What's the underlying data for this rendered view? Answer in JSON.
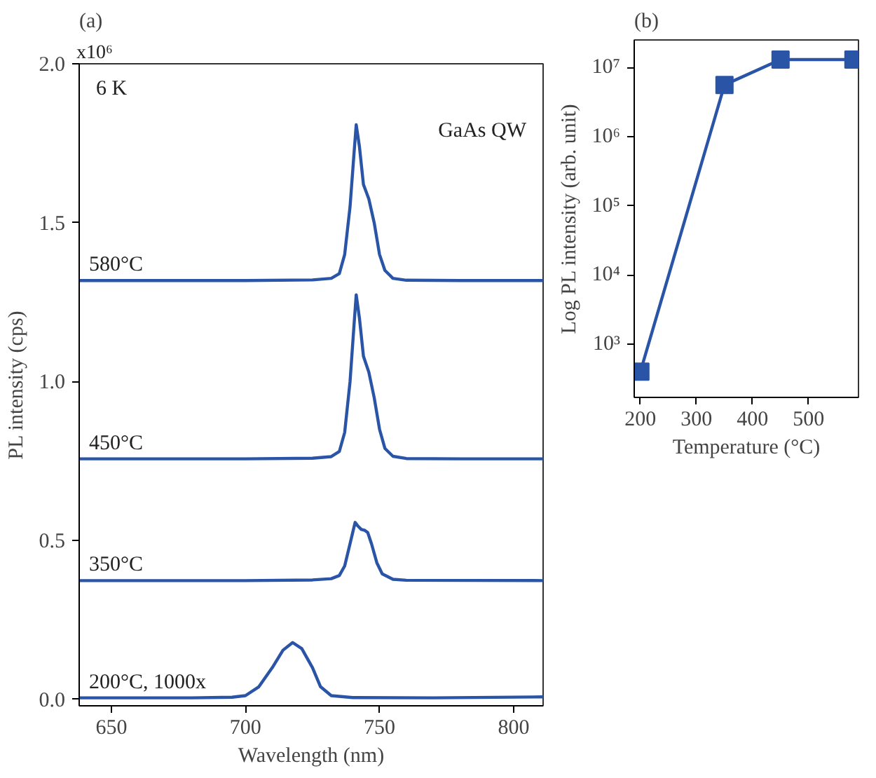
{
  "chart_data": [
    {
      "type": "line",
      "title": "(a)",
      "xlabel": "Wavelength (nm)",
      "ylabel": "PL intensity (cps)",
      "xlim": [
        638,
        811
      ],
      "xticks": [
        650,
        700,
        750,
        800
      ],
      "ylim": [
        -0.02,
        2.0
      ],
      "yticks": [
        {
          "value": 0.0,
          "label": "0.0"
        },
        {
          "value": 0.5,
          "label": "0.5"
        },
        {
          "value": 1.0,
          "label": "1.0"
        },
        {
          "value": 1.5,
          "label": "1.5"
        },
        {
          "value": 2.0,
          "label": "2.0"
        }
      ],
      "grid": false,
      "annotations": [
        "6 K",
        "GaAs QW",
        "x10⁶"
      ],
      "series": [
        {
          "name": "580°C",
          "color": "#2a54a6",
          "x": [
            638,
            700,
            725,
            732,
            735,
            737,
            739,
            740.5,
            741.3,
            742.5,
            744,
            746,
            748,
            750,
            752,
            755,
            760,
            780,
            811
          ],
          "values": [
            1.318,
            1.318,
            1.32,
            1.325,
            1.34,
            1.4,
            1.55,
            1.72,
            1.808,
            1.74,
            1.62,
            1.575,
            1.5,
            1.4,
            1.35,
            1.325,
            1.319,
            1.318,
            1.318
          ]
        },
        {
          "name": "450°C",
          "color": "#2a54a6",
          "x": [
            638,
            700,
            725,
            732,
            735,
            737,
            739,
            740.5,
            741.3,
            742.5,
            744,
            746,
            748,
            750,
            752,
            755,
            760,
            780,
            811
          ],
          "values": [
            0.757,
            0.757,
            0.759,
            0.764,
            0.78,
            0.84,
            1.0,
            1.18,
            1.273,
            1.2,
            1.08,
            1.03,
            0.95,
            0.85,
            0.79,
            0.765,
            0.758,
            0.757,
            0.757
          ]
        },
        {
          "name": "350°C",
          "color": "#2a54a6",
          "x": [
            638,
            700,
            725,
            732,
            735,
            737,
            739,
            740.9,
            742,
            743.2,
            744.5,
            745.6,
            747,
            749,
            751,
            755,
            760,
            811
          ],
          "values": [
            0.374,
            0.374,
            0.376,
            0.38,
            0.39,
            0.42,
            0.49,
            0.557,
            0.545,
            0.535,
            0.532,
            0.525,
            0.49,
            0.43,
            0.395,
            0.378,
            0.375,
            0.374
          ]
        },
        {
          "name": "200°C, 1000x",
          "color": "#2a54a6",
          "x": [
            638,
            680,
            695,
            700,
            705,
            710,
            714,
            717.6,
            721,
            725,
            728,
            732,
            740,
            770,
            811
          ],
          "values": [
            0.005,
            0.005,
            0.007,
            0.012,
            0.04,
            0.1,
            0.155,
            0.179,
            0.16,
            0.1,
            0.04,
            0.012,
            0.006,
            0.005,
            0.008
          ]
        }
      ]
    },
    {
      "type": "line",
      "title": "(b)",
      "xlabel": "Temperature (°C)",
      "ylabel": "Log PL intensity (arb. unit)",
      "log": "y",
      "marker": "square",
      "grid": false,
      "xlim": [
        189,
        589
      ],
      "xticks": [
        200,
        300,
        400,
        500
      ],
      "ylim": [
        170,
        25000000
      ],
      "yticks": [
        {
          "value": 1000,
          "label": "10³"
        },
        {
          "value": 10000,
          "label": "10⁴"
        },
        {
          "value": 100000,
          "label": "10⁵"
        },
        {
          "value": 1000000,
          "label": "10⁶"
        },
        {
          "value": 10000000,
          "label": "10⁷"
        }
      ],
      "series": [
        {
          "color": "#2a54a6",
          "x": [
            200,
            350,
            450,
            580
          ],
          "values": [
            400,
            5600000,
            13000000,
            13000000
          ]
        }
      ]
    }
  ]
}
